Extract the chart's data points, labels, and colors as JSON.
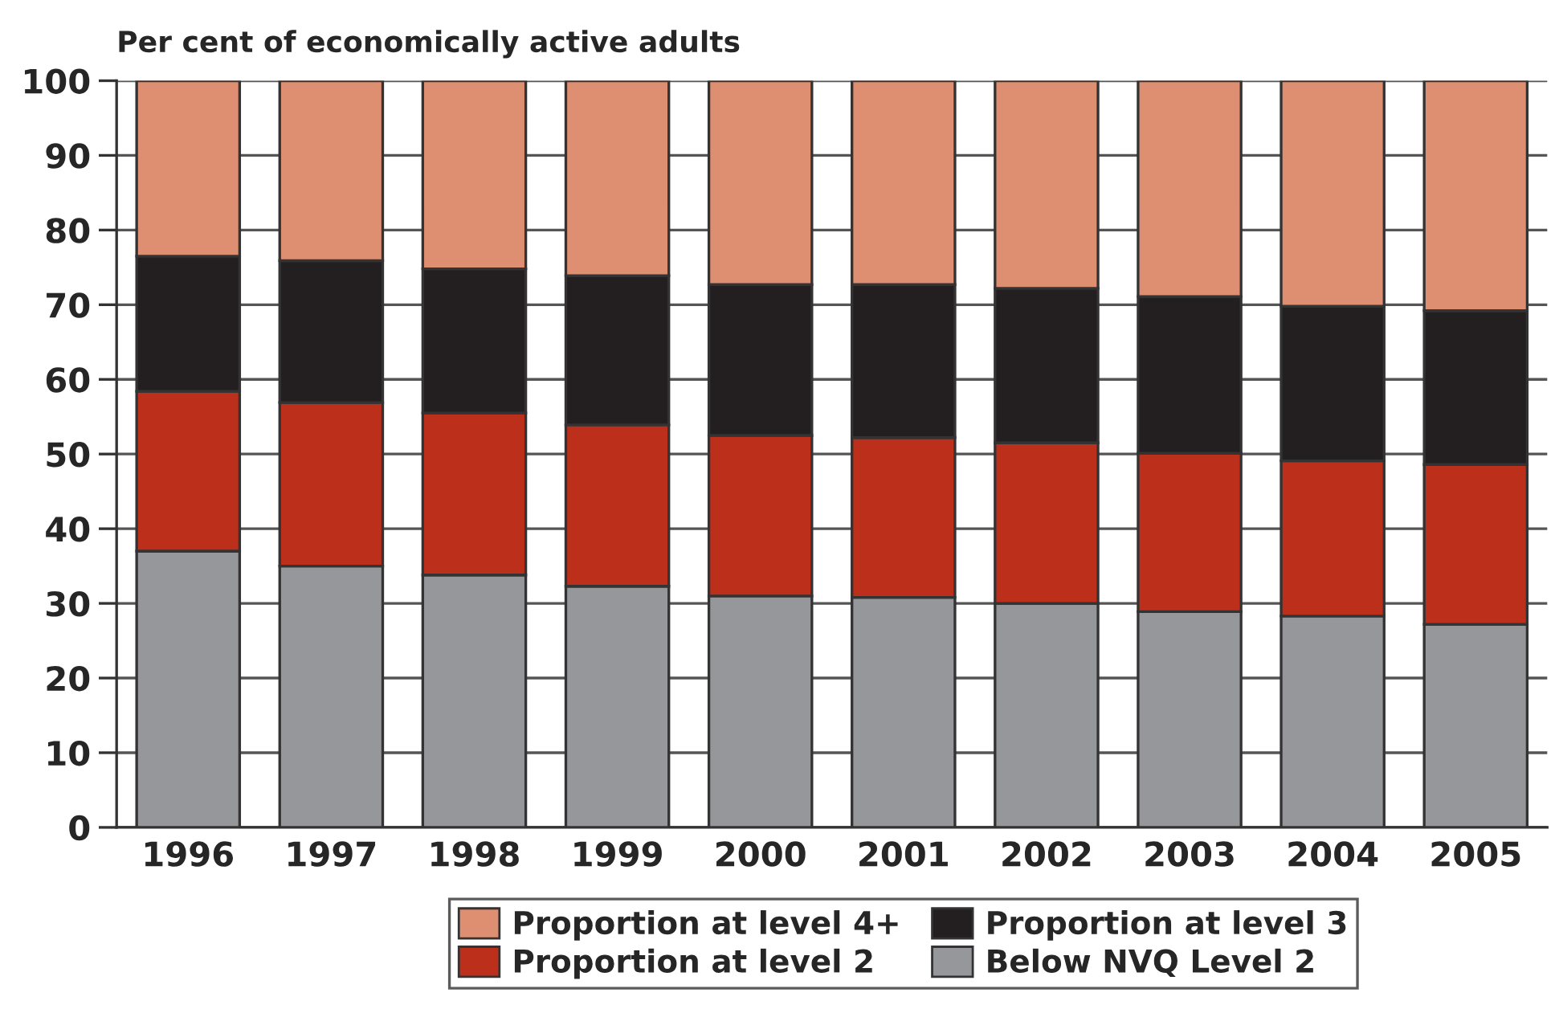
{
  "chart_data": {
    "type": "bar",
    "stacked": true,
    "ylabel": "Per cent of economically active adults",
    "categories": [
      "1996",
      "1997",
      "1998",
      "1999",
      "2000",
      "2001",
      "2002",
      "2003",
      "2004",
      "2005"
    ],
    "series": [
      {
        "name": "Below NVQ Level 2",
        "color": "#96979b",
        "values": [
          37,
          35,
          33.8,
          32.3,
          31,
          30.8,
          30,
          28.9,
          28.3,
          27.2
        ]
      },
      {
        "name": "Proportion at level 2",
        "color": "#bc301b",
        "values": [
          21.4,
          21.9,
          21.7,
          21.6,
          21.5,
          21.4,
          21.5,
          21.2,
          20.8,
          21.4
        ]
      },
      {
        "name": "Proportion at level 3",
        "color": "#231f20",
        "values": [
          18.1,
          19,
          19.3,
          20,
          20.2,
          20.5,
          20.7,
          21,
          20.7,
          20.6
        ]
      },
      {
        "name": "Proportion at level 4+",
        "color": "#de8f72",
        "values": [
          23.5,
          24.1,
          25.2,
          26.1,
          27.3,
          27.3,
          27.8,
          28.9,
          30.2,
          30.8
        ]
      }
    ],
    "ylim": [
      0,
      100
    ],
    "yticks": [
      0,
      10,
      20,
      30,
      40,
      50,
      60,
      70,
      80,
      90,
      100
    ],
    "grid": "y",
    "legend": "bottom"
  }
}
